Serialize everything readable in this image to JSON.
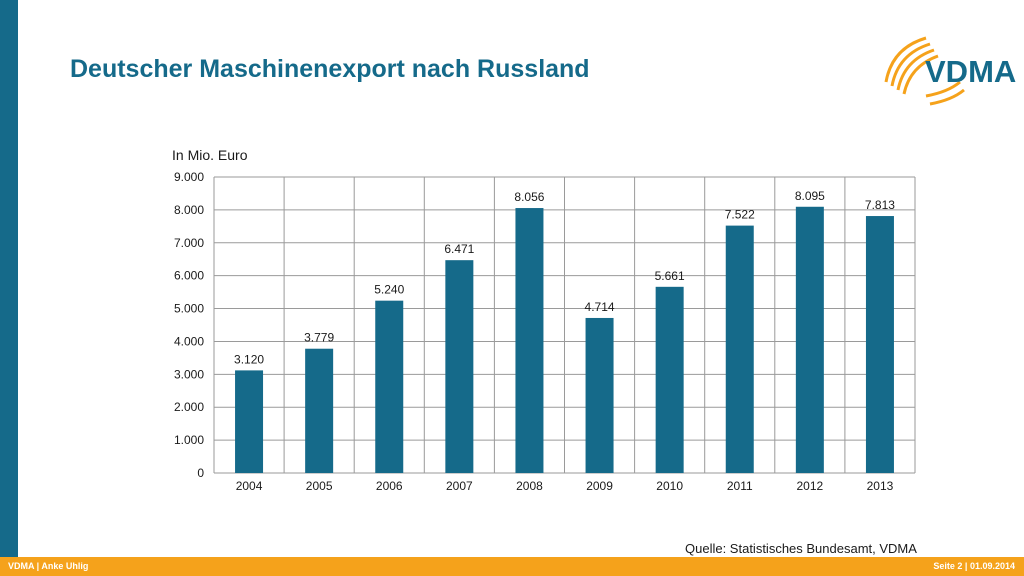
{
  "slide": {
    "title": "Deutscher Maschinenexport nach Russland",
    "source": "Quelle: Statistisches Bundesamt, VDMA",
    "footer_left": "VDMA | Anke Uhlig",
    "footer_right": "Seite 2 | 01.09.2014"
  },
  "logo": {
    "text": "VDMA",
    "icon": "vdma-arcs-logo"
  },
  "colors": {
    "brand": "#156a8a",
    "accent": "#f5a21b",
    "bar": "#156a8a"
  },
  "chart_data": {
    "type": "bar",
    "unit_label": "In Mio. Euro",
    "categories": [
      "2004",
      "2005",
      "2006",
      "2007",
      "2008",
      "2009",
      "2010",
      "2011",
      "2012",
      "2013"
    ],
    "values": [
      3120,
      3779,
      5240,
      6471,
      8056,
      4714,
      5661,
      7522,
      8095,
      7813
    ],
    "value_labels": [
      "3.120",
      "3.779",
      "5.240",
      "6.471",
      "8.056",
      "4.714",
      "5.661",
      "7.522",
      "8.095",
      "7.813"
    ],
    "ylim": [
      0,
      9000
    ],
    "yticks": [
      0,
      1000,
      2000,
      3000,
      4000,
      5000,
      6000,
      7000,
      8000,
      9000
    ],
    "ytick_labels": [
      "0",
      "1.000",
      "2.000",
      "3.000",
      "4.000",
      "5.000",
      "6.000",
      "7.000",
      "8.000",
      "9.000"
    ],
    "grid": true,
    "legend": false
  }
}
